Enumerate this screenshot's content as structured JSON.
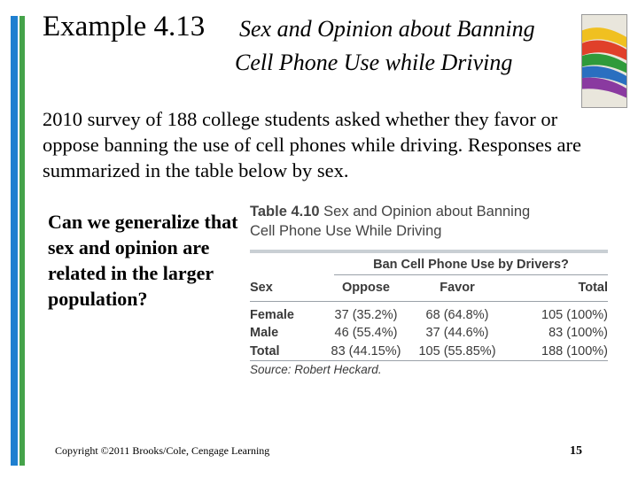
{
  "slide": {
    "title_main": "Example 4.13",
    "title_line1": "Sex and Opinion about Banning",
    "title_line2": "Cell Phone Use while Driving",
    "intro": "2010 survey of 188 college students  asked whether they favor or oppose banning the use of cell phones while driving. Responses are summarized in the table below by sex.",
    "question": "Can we generalize that sex and opinion are related in the larger population?",
    "copyright": "Copyright ©2011 Brooks/Cole, Cengage Learning",
    "page_number": "15"
  },
  "table": {
    "caption_number": "Table 4.10",
    "caption_line1": "Sex and Opinion about Banning",
    "caption_line2": "Cell Phone Use While Driving",
    "spanning_header": "Ban Cell Phone Use by Drivers?",
    "columns": [
      "Sex",
      "Oppose",
      "Favor",
      "Total"
    ],
    "rows": [
      {
        "label": "Female",
        "oppose": "37 (35.2%)",
        "favor": "68 (64.8%)",
        "total": "105 (100%)"
      },
      {
        "label": "Male",
        "oppose": "46 (55.4%)",
        "favor": "37 (44.6%)",
        "total": "83 (100%)"
      },
      {
        "label": "Total",
        "oppose": "83 (44.15%)",
        "favor": "105 (55.85%)",
        "total": "188 (100%)"
      }
    ],
    "source": "Source: Robert Heckard."
  }
}
